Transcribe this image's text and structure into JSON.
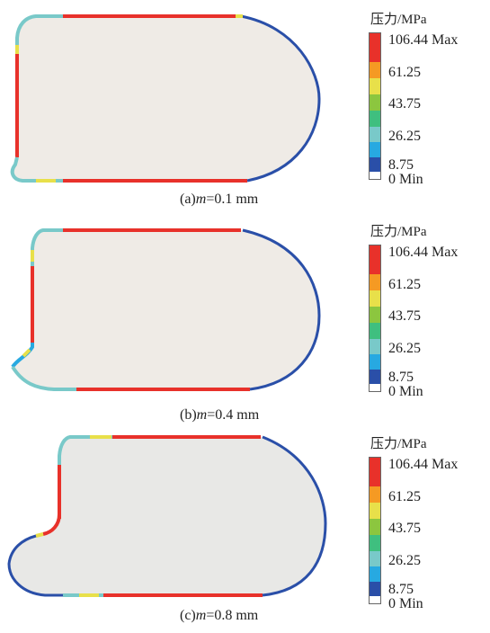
{
  "panels": [
    {
      "caption_prefix": "(a)",
      "caption_var": "m",
      "caption_value": "=0.1 mm"
    },
    {
      "caption_prefix": "(b)",
      "caption_var": "m",
      "caption_value": "=0.4 mm"
    },
    {
      "caption_prefix": "(c)",
      "caption_var": "m",
      "caption_value": "=0.8 mm"
    }
  ],
  "legend": {
    "title": "压力/MPa",
    "labels": [
      "106.44 Max",
      "61.25",
      "43.75",
      "26.25",
      "8.75",
      "0 Min"
    ],
    "colors": [
      "#e8312a",
      "#f59a23",
      "#e8e04a",
      "#8cc63f",
      "#3fbf7f",
      "#79c9c9",
      "#27a9e1",
      "#2a4fa8",
      "#ffffff"
    ]
  },
  "colors": {
    "fill": "#efebe6",
    "fill_c": "#e8e8e6",
    "high": "#e8312a",
    "low": "#2a4fa8"
  }
}
